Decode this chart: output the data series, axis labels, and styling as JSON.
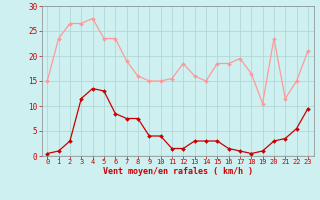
{
  "x": [
    0,
    1,
    2,
    3,
    4,
    5,
    6,
    7,
    8,
    9,
    10,
    11,
    12,
    13,
    14,
    15,
    16,
    17,
    18,
    19,
    20,
    21,
    22,
    23
  ],
  "wind_avg": [
    0.5,
    1.0,
    3.0,
    11.5,
    13.5,
    13.0,
    8.5,
    7.5,
    7.5,
    4.0,
    4.0,
    1.5,
    1.5,
    3.0,
    3.0,
    3.0,
    1.5,
    1.0,
    0.5,
    1.0,
    3.0,
    3.5,
    5.5,
    9.5
  ],
  "wind_gust": [
    15.0,
    23.5,
    26.5,
    26.5,
    27.5,
    23.5,
    23.5,
    19.0,
    16.0,
    15.0,
    15.0,
    15.5,
    18.5,
    16.0,
    15.0,
    18.5,
    18.5,
    19.5,
    16.5,
    10.5,
    23.5,
    11.5,
    15.0,
    21.0
  ],
  "bg_color": "#cff0f0",
  "grid_color": "#b0d8d8",
  "line_avg_color": "#cc0000",
  "line_gust_color": "#ff9999",
  "xlabel": "Vent moyen/en rafales ( km/h )",
  "ylim": [
    0,
    30
  ],
  "yticks": [
    0,
    5,
    10,
    15,
    20,
    25,
    30
  ],
  "xticks": [
    0,
    1,
    2,
    3,
    4,
    5,
    6,
    7,
    8,
    9,
    10,
    11,
    12,
    13,
    14,
    15,
    16,
    17,
    18,
    19,
    20,
    21,
    22,
    23
  ],
  "ylabel_color": "#cc0000",
  "xlabel_color": "#cc0000",
  "tick_label_color": "#cc0000"
}
